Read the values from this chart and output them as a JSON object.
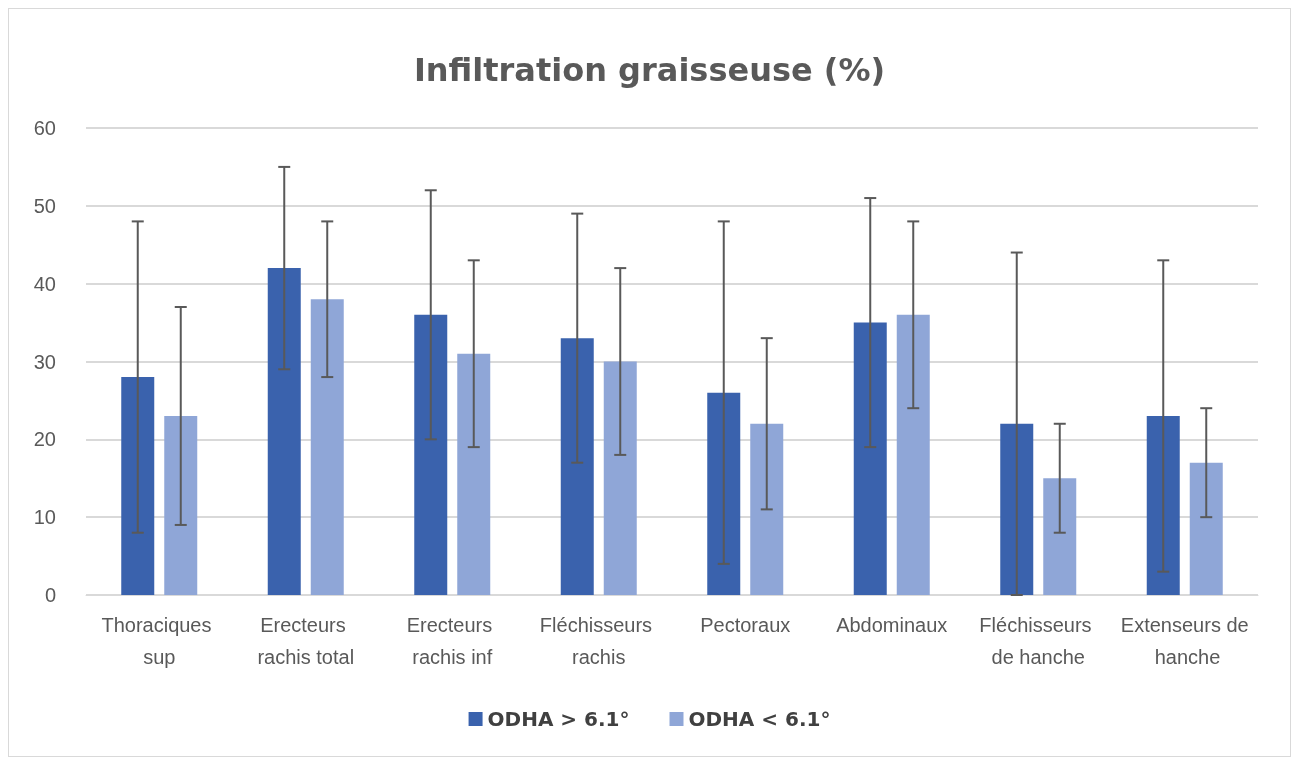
{
  "chart_data": {
    "type": "bar",
    "title": "Infiltration graisseuse (%)",
    "categories": [
      "Thoraciques sup",
      "Erecteurs rachis total",
      "Erecteurs rachis inf",
      "Fléchisseurs rachis",
      "Pectoraux",
      "Abdominaux",
      "Fléchisseurs de hanche",
      "Extenseurs de hanche"
    ],
    "series": [
      {
        "name": "ODHA > 6.1°",
        "color": "#3a62ad",
        "values": [
          28,
          42,
          36,
          33,
          26,
          35,
          22,
          23
        ],
        "errors": [
          20,
          13,
          16,
          16,
          22,
          16,
          22,
          20
        ]
      },
      {
        "name": "ODHA < 6.1°",
        "color": "#8fa6d7",
        "values": [
          23,
          38,
          31,
          30,
          22,
          36,
          15,
          17
        ],
        "errors": [
          14,
          10,
          12,
          12,
          11,
          12,
          7,
          7
        ]
      }
    ],
    "ylim": [
      0,
      60
    ],
    "yticks": [
      0,
      10,
      20,
      30,
      40,
      50,
      60
    ],
    "grid": "y",
    "legend": "bottom"
  }
}
